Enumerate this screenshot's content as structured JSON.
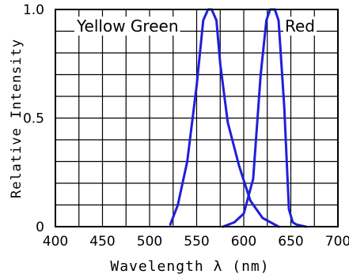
{
  "chart_data": {
    "type": "line",
    "title": "",
    "xlabel": "Wavelength λ  (nm)",
    "ylabel": "Relative Intensity",
    "xlim": [
      400,
      700
    ],
    "ylim": [
      0,
      1.0
    ],
    "x_ticks": [
      "400",
      "450",
      "500",
      "550",
      "600",
      "650",
      "700"
    ],
    "y_ticks": [
      "0",
      "0.5",
      "1.0"
    ],
    "grid": true,
    "series": [
      {
        "name": "Yellow Green",
        "color": "#1f1fdc",
        "x": [
          522,
          530,
          540,
          550,
          557,
          562,
          566,
          571,
          575,
          583,
          595,
          607,
          620,
          637
        ],
        "y": [
          0.01,
          0.1,
          0.3,
          0.65,
          0.95,
          1.0,
          1.0,
          0.95,
          0.75,
          0.48,
          0.28,
          0.12,
          0.04,
          0.0
        ]
      },
      {
        "name": "Red",
        "color": "#1f1fdc",
        "x": [
          578,
          590,
          600,
          610,
          618,
          624,
          628,
          633,
          637,
          643,
          648,
          652,
          656,
          666
        ],
        "y": [
          0.0,
          0.02,
          0.06,
          0.22,
          0.7,
          0.95,
          1.0,
          1.0,
          0.95,
          0.55,
          0.08,
          0.02,
          0.01,
          0.0
        ]
      }
    ]
  }
}
